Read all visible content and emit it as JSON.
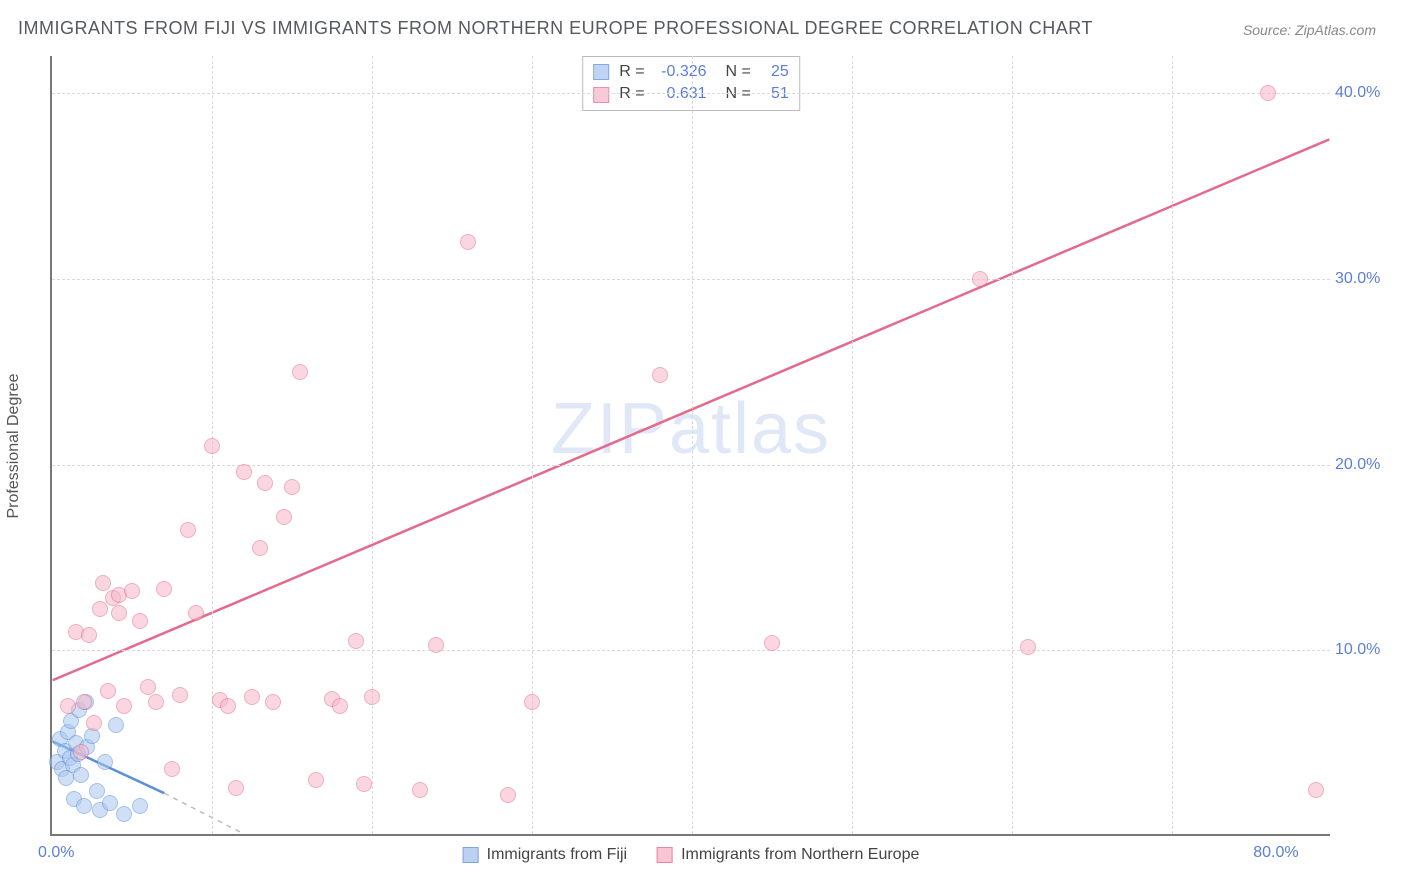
{
  "title": "IMMIGRANTS FROM FIJI VS IMMIGRANTS FROM NORTHERN EUROPE PROFESSIONAL DEGREE CORRELATION CHART",
  "source": "Source: ZipAtlas.com",
  "watermark": "ZIPatlas",
  "ylabel": "Professional Degree",
  "chart": {
    "type": "scatter",
    "background_color": "#ffffff",
    "grid_color": "#d9d9d9",
    "axis_color": "#777777",
    "tick_color": "#5b7fd6",
    "tick_fontsize": 16,
    "title_fontsize": 18,
    "title_color": "#555a60",
    "xlim": [
      0,
      80
    ],
    "ylim": [
      0,
      42
    ],
    "x_ticks": [
      {
        "pos": 0,
        "label": "0.0%"
      },
      {
        "pos": 80,
        "label": "80.0%"
      }
    ],
    "x_grid_steps": [
      10,
      20,
      30,
      40,
      50,
      60,
      70
    ],
    "y_ticks": [
      {
        "pos": 10,
        "label": "10.0%"
      },
      {
        "pos": 20,
        "label": "20.0%"
      },
      {
        "pos": 30,
        "label": "30.0%"
      },
      {
        "pos": 40,
        "label": "40.0%"
      }
    ],
    "point_radius": 8,
    "point_stroke_width": 1.5,
    "series": [
      {
        "name": "Immigrants from Fiji",
        "fill": "#a9c6f0",
        "stroke": "#5b8fd6",
        "fill_opacity": 0.55,
        "stats": {
          "R": "-0.326",
          "N": "25"
        },
        "trend": {
          "x1": 0,
          "y1": 5.0,
          "x2": 7,
          "y2": 2.2,
          "dash_extend_x": 12,
          "dash_extend_y": 0
        },
        "points": [
          [
            0.3,
            4.0
          ],
          [
            0.5,
            5.2
          ],
          [
            0.6,
            3.6
          ],
          [
            0.8,
            4.6
          ],
          [
            0.9,
            3.1
          ],
          [
            1.0,
            5.6
          ],
          [
            1.1,
            4.2
          ],
          [
            1.2,
            6.2
          ],
          [
            1.3,
            3.8
          ],
          [
            1.4,
            2.0
          ],
          [
            1.5,
            5.0
          ],
          [
            1.6,
            4.4
          ],
          [
            1.7,
            6.8
          ],
          [
            1.8,
            3.3
          ],
          [
            2.0,
            1.6
          ],
          [
            2.1,
            7.2
          ],
          [
            2.2,
            4.8
          ],
          [
            2.5,
            5.4
          ],
          [
            2.8,
            2.4
          ],
          [
            3.0,
            1.4
          ],
          [
            3.3,
            4.0
          ],
          [
            3.6,
            1.8
          ],
          [
            4.0,
            6.0
          ],
          [
            4.5,
            1.2
          ],
          [
            5.5,
            1.6
          ]
        ]
      },
      {
        "name": "Immigrants from Northern Europe",
        "fill": "#f7b8c7",
        "stroke": "#e36a8c",
        "fill_opacity": 0.55,
        "stats": {
          "R": "0.631",
          "N": "51"
        },
        "trend": {
          "x1": 0,
          "y1": 8.3,
          "x2": 80,
          "y2": 37.5
        },
        "points": [
          [
            1.0,
            7.0
          ],
          [
            1.5,
            11.0
          ],
          [
            1.8,
            4.5
          ],
          [
            2.0,
            7.2
          ],
          [
            2.3,
            10.8
          ],
          [
            2.6,
            6.1
          ],
          [
            3.0,
            12.2
          ],
          [
            3.2,
            13.6
          ],
          [
            3.5,
            7.8
          ],
          [
            3.8,
            12.8
          ],
          [
            4.2,
            13.0
          ],
          [
            4.2,
            12.0
          ],
          [
            4.5,
            7.0
          ],
          [
            5.0,
            13.2
          ],
          [
            5.5,
            11.6
          ],
          [
            6.0,
            8.0
          ],
          [
            6.5,
            7.2
          ],
          [
            7.0,
            13.3
          ],
          [
            7.5,
            3.6
          ],
          [
            8.0,
            7.6
          ],
          [
            8.5,
            16.5
          ],
          [
            9.0,
            12.0
          ],
          [
            10.0,
            21.0
          ],
          [
            10.5,
            7.3
          ],
          [
            11.0,
            7.0
          ],
          [
            11.5,
            2.6
          ],
          [
            12.0,
            19.6
          ],
          [
            12.5,
            7.5
          ],
          [
            13.0,
            15.5
          ],
          [
            13.3,
            19.0
          ],
          [
            13.8,
            7.2
          ],
          [
            14.5,
            17.2
          ],
          [
            15.0,
            18.8
          ],
          [
            15.5,
            25.0
          ],
          [
            16.5,
            3.0
          ],
          [
            17.5,
            7.4
          ],
          [
            18.0,
            7.0
          ],
          [
            19.0,
            10.5
          ],
          [
            19.5,
            2.8
          ],
          [
            20.0,
            7.5
          ],
          [
            23.0,
            2.5
          ],
          [
            24.0,
            10.3
          ],
          [
            26.0,
            32.0
          ],
          [
            28.5,
            2.2
          ],
          [
            30.0,
            7.2
          ],
          [
            38.0,
            24.8
          ],
          [
            45.0,
            10.4
          ],
          [
            58.0,
            30.0
          ],
          [
            61.0,
            10.2
          ],
          [
            76.0,
            40.0
          ],
          [
            79.0,
            2.5
          ]
        ]
      }
    ],
    "bottom_legend": [
      {
        "label": "Immigrants from Fiji",
        "fill": "#a9c6f0",
        "stroke": "#5b8fd6"
      },
      {
        "label": "Immigrants from Northern Europe",
        "fill": "#f7b8c7",
        "stroke": "#e36a8c"
      }
    ]
  }
}
